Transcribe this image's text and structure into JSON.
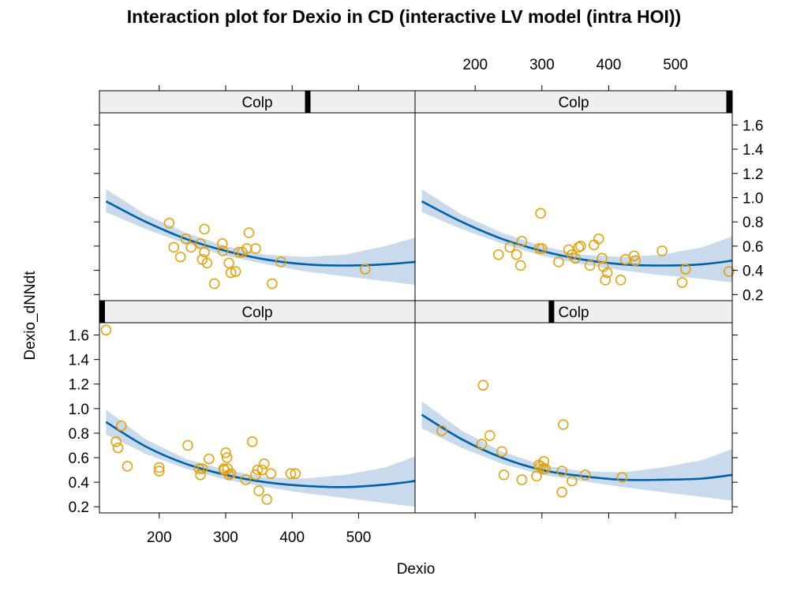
{
  "chart_data": {
    "type": "scatter",
    "title": "Interaction plot for Dexio in CD (interactive LV model (intra HOI))",
    "xlabel": "Dexio",
    "ylabel": "Dexio_dNNdt",
    "xlim": [
      110,
      585
    ],
    "ylim": [
      0.15,
      1.7
    ],
    "xticks": [
      200,
      300,
      400,
      500
    ],
    "yticks": [
      0.2,
      0.4,
      0.6,
      0.8,
      1.0,
      1.2,
      1.4,
      1.6
    ],
    "colors": {
      "points": "#E69F00",
      "curve": "#0060A8",
      "band": "#C8DAEC",
      "strip": "#EFEFEF",
      "indicator": "#000000"
    },
    "panels": [
      {
        "strip_label": "Colp",
        "indicator_fraction": 0.66,
        "position": "top-left",
        "curve": {
          "x": [
            120,
            180,
            240,
            300,
            360,
            420,
            480,
            540,
            585
          ],
          "y": [
            0.97,
            0.8,
            0.66,
            0.56,
            0.49,
            0.45,
            0.44,
            0.45,
            0.47
          ],
          "lower": [
            0.88,
            0.74,
            0.62,
            0.52,
            0.45,
            0.39,
            0.35,
            0.31,
            0.28
          ],
          "upper": [
            1.07,
            0.86,
            0.71,
            0.6,
            0.53,
            0.51,
            0.53,
            0.6,
            0.67
          ]
        },
        "points": [
          [
            215,
            0.79
          ],
          [
            222,
            0.59
          ],
          [
            232,
            0.51
          ],
          [
            240,
            0.66
          ],
          [
            248,
            0.59
          ],
          [
            262,
            0.62
          ],
          [
            265,
            0.49
          ],
          [
            268,
            0.74
          ],
          [
            268,
            0.55
          ],
          [
            272,
            0.46
          ],
          [
            283,
            0.29
          ],
          [
            295,
            0.62
          ],
          [
            296,
            0.56
          ],
          [
            305,
            0.46
          ],
          [
            308,
            0.38
          ],
          [
            315,
            0.39
          ],
          [
            320,
            0.55
          ],
          [
            325,
            0.55
          ],
          [
            332,
            0.58
          ],
          [
            335,
            0.71
          ],
          [
            345,
            0.58
          ],
          [
            370,
            0.29
          ],
          [
            383,
            0.47
          ],
          [
            510,
            0.41
          ]
        ]
      },
      {
        "strip_label": "Colp",
        "indicator_fraction": 0.99,
        "position": "top-right",
        "curve": {
          "x": [
            120,
            180,
            240,
            300,
            360,
            420,
            480,
            540,
            585
          ],
          "y": [
            0.97,
            0.8,
            0.66,
            0.56,
            0.49,
            0.45,
            0.44,
            0.45,
            0.48
          ],
          "lower": [
            0.88,
            0.74,
            0.62,
            0.52,
            0.45,
            0.4,
            0.36,
            0.33,
            0.3
          ],
          "upper": [
            1.07,
            0.86,
            0.71,
            0.6,
            0.53,
            0.51,
            0.53,
            0.59,
            0.68
          ]
        },
        "points": [
          [
            235,
            0.53
          ],
          [
            252,
            0.59
          ],
          [
            262,
            0.53
          ],
          [
            268,
            0.44
          ],
          [
            270,
            0.64
          ],
          [
            296,
            0.58
          ],
          [
            298,
            0.87
          ],
          [
            300,
            0.58
          ],
          [
            325,
            0.47
          ],
          [
            340,
            0.57
          ],
          [
            345,
            0.53
          ],
          [
            350,
            0.5
          ],
          [
            355,
            0.59
          ],
          [
            358,
            0.6
          ],
          [
            372,
            0.44
          ],
          [
            378,
            0.61
          ],
          [
            385,
            0.66
          ],
          [
            390,
            0.5
          ],
          [
            392,
            0.43
          ],
          [
            395,
            0.32
          ],
          [
            398,
            0.38
          ],
          [
            418,
            0.32
          ],
          [
            425,
            0.49
          ],
          [
            438,
            0.52
          ],
          [
            440,
            0.48
          ],
          [
            480,
            0.56
          ],
          [
            510,
            0.3
          ],
          [
            515,
            0.41
          ],
          [
            580,
            0.39
          ]
        ]
      },
      {
        "strip_label": "Colp",
        "indicator_fraction": 0.0,
        "position": "bottom-left",
        "curve": {
          "x": [
            120,
            180,
            240,
            300,
            360,
            420,
            480,
            540,
            585
          ],
          "y": [
            0.89,
            0.69,
            0.55,
            0.46,
            0.4,
            0.37,
            0.36,
            0.38,
            0.41
          ],
          "lower": [
            0.79,
            0.63,
            0.51,
            0.42,
            0.36,
            0.31,
            0.27,
            0.23,
            0.2
          ],
          "upper": [
            0.99,
            0.75,
            0.59,
            0.5,
            0.44,
            0.43,
            0.46,
            0.52,
            0.61
          ]
        },
        "points": [
          [
            120,
            1.64
          ],
          [
            135,
            0.73
          ],
          [
            138,
            0.68
          ],
          [
            143,
            0.86
          ],
          [
            152,
            0.53
          ],
          [
            200,
            0.49
          ],
          [
            200,
            0.52
          ],
          [
            243,
            0.7
          ],
          [
            260,
            0.51
          ],
          [
            262,
            0.46
          ],
          [
            265,
            0.51
          ],
          [
            275,
            0.59
          ],
          [
            297,
            0.51
          ],
          [
            298,
            0.5
          ],
          [
            300,
            0.64
          ],
          [
            302,
            0.6
          ],
          [
            303,
            0.51
          ],
          [
            305,
            0.46
          ],
          [
            308,
            0.47
          ],
          [
            330,
            0.42
          ],
          [
            340,
            0.73
          ],
          [
            345,
            0.46
          ],
          [
            348,
            0.5
          ],
          [
            350,
            0.33
          ],
          [
            355,
            0.5
          ],
          [
            358,
            0.55
          ],
          [
            362,
            0.26
          ],
          [
            368,
            0.47
          ],
          [
            398,
            0.47
          ],
          [
            405,
            0.47
          ]
        ]
      },
      {
        "strip_label": "Colp",
        "indicator_fraction": 0.43,
        "position": "bottom-right",
        "curve": {
          "x": [
            120,
            180,
            240,
            300,
            360,
            420,
            480,
            540,
            585
          ],
          "y": [
            0.95,
            0.75,
            0.6,
            0.5,
            0.45,
            0.42,
            0.42,
            0.43,
            0.46
          ],
          "lower": [
            0.84,
            0.68,
            0.55,
            0.46,
            0.41,
            0.36,
            0.32,
            0.28,
            0.25
          ],
          "upper": [
            1.06,
            0.82,
            0.65,
            0.54,
            0.49,
            0.48,
            0.52,
            0.58,
            0.67
          ]
        },
        "points": [
          [
            150,
            0.82
          ],
          [
            210,
            0.71
          ],
          [
            212,
            1.19
          ],
          [
            222,
            0.78
          ],
          [
            240,
            0.65
          ],
          [
            243,
            0.46
          ],
          [
            270,
            0.42
          ],
          [
            292,
            0.45
          ],
          [
            295,
            0.54
          ],
          [
            298,
            0.53
          ],
          [
            302,
            0.51
          ],
          [
            303,
            0.57
          ],
          [
            305,
            0.51
          ],
          [
            330,
            0.49
          ],
          [
            330,
            0.32
          ],
          [
            332,
            0.87
          ],
          [
            345,
            0.41
          ],
          [
            365,
            0.46
          ],
          [
            420,
            0.44
          ]
        ]
      }
    ]
  }
}
